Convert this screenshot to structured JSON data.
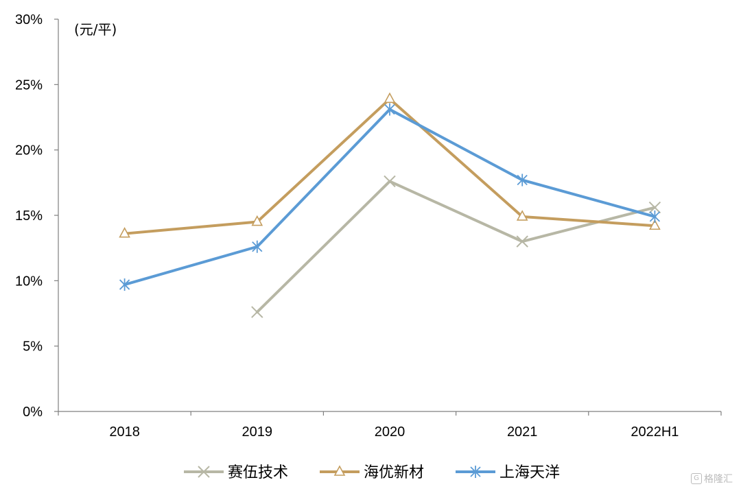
{
  "chart_data": {
    "type": "line",
    "categories": [
      "2018",
      "2019",
      "2020",
      "2021",
      "2022H1"
    ],
    "unit_label": "(元/平)",
    "ylim": [
      0,
      30
    ],
    "yticks": [
      "0%",
      "5%",
      "10%",
      "15%",
      "20%",
      "25%",
      "30%"
    ],
    "grid": false,
    "legend_position": "bottom",
    "series": [
      {
        "name": "赛伍技术",
        "color": "#b7b7a5",
        "marker": "x",
        "values": [
          null,
          7.6,
          17.6,
          13.0,
          15.6
        ]
      },
      {
        "name": "海优新材",
        "color": "#c49d5e",
        "marker": "triangle",
        "values": [
          13.6,
          14.5,
          23.9,
          14.9,
          14.2
        ]
      },
      {
        "name": "上海天洋",
        "color": "#5b9bd5",
        "marker": "asterisk",
        "values": [
          9.7,
          12.6,
          23.1,
          17.7,
          14.9
        ]
      }
    ]
  },
  "watermark": {
    "icon": "G",
    "text": "格隆汇"
  }
}
